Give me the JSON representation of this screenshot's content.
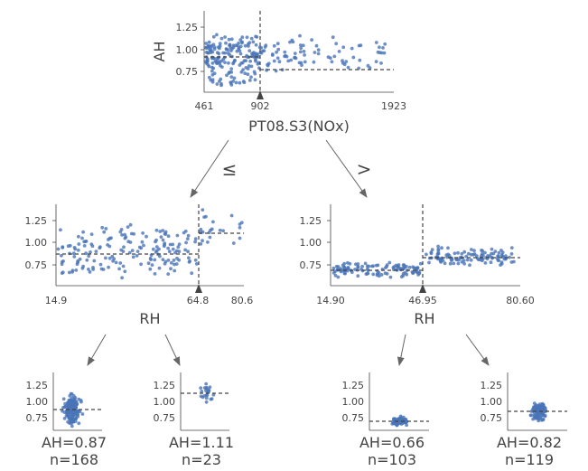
{
  "root": {
    "feature": "PT08.S3(NOx)",
    "ylabel": "AH",
    "yticks": [
      "1.25",
      "1.00",
      "0.75"
    ],
    "xticks": [
      "461",
      "902",
      "1923"
    ],
    "split": "902"
  },
  "edges": {
    "left": "≤",
    "right": ">"
  },
  "left_node": {
    "feature": "RH",
    "yticks": [
      "1.25",
      "1.00",
      "0.75"
    ],
    "xticks": [
      "14.9",
      "64.8",
      "80.6"
    ],
    "split": "64.8"
  },
  "right_node": {
    "feature": "RH",
    "yticks": [
      "1.25",
      "1.00",
      "0.75"
    ],
    "xticks": [
      "14.90",
      "46.95",
      "80.60"
    ],
    "split": "46.95"
  },
  "leaves": [
    {
      "pred": "AH=0.87",
      "n": "n=168"
    },
    {
      "pred": "AH=1.11",
      "n": "n=23"
    },
    {
      "pred": "AH=0.66",
      "n": "n=103"
    },
    {
      "pred": "AH=0.82",
      "n": "n=119"
    }
  ],
  "leaf_yticks": [
    "1.25",
    "1.00",
    "0.75"
  ],
  "colors": {
    "points": "#4a74b8",
    "axis": "#444444",
    "split": "#333333"
  }
}
